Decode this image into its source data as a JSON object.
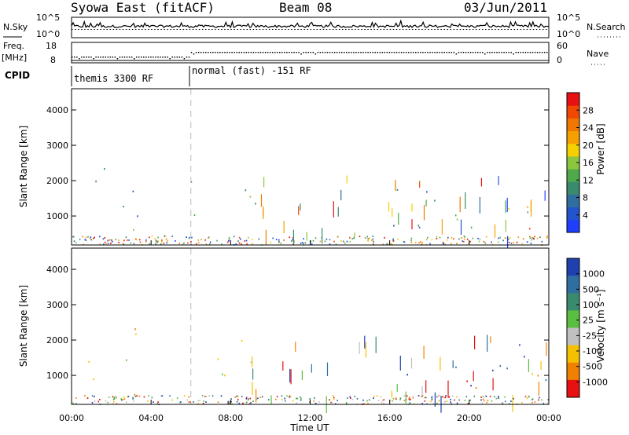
{
  "header": {
    "station": "Syowa East (fitACF)",
    "beam": "Beam 08",
    "date": "03/Jun/2011"
  },
  "top_panel": {
    "left_label": "N.Sky",
    "left_ticks": [
      "10^5",
      "10^0"
    ],
    "right_ticks": [
      "10^5",
      "10^0"
    ],
    "right_label": "N.Search"
  },
  "freq_panel": {
    "left_label_1": "Freq.",
    "left_label_2": "[MHz]",
    "left_ticks": [
      "18",
      "8"
    ],
    "right_ticks": [
      "60",
      "0"
    ],
    "right_label": "Nave"
  },
  "cpid": {
    "label": "CPID",
    "segments": [
      {
        "text": "themis 3300 RF",
        "start_hour": 0
      },
      {
        "text": "normal (fast) -151 RF",
        "start_hour": 6
      }
    ]
  },
  "chart_data": [
    {
      "type": "heatmap",
      "panel": "power",
      "ylabel": "Slant Range [km]",
      "yticks": [
        1000,
        2000,
        3000,
        4000
      ],
      "ylim": [
        180,
        4600
      ],
      "xlim_hours": [
        0,
        24
      ],
      "colorbar": {
        "label": "Power [dB]",
        "ticks": [
          4,
          8,
          12,
          16,
          20,
          24,
          28
        ],
        "colors": [
          "#1f3fff",
          "#2255cc",
          "#2e6fa0",
          "#3a8a6e",
          "#4fa84a",
          "#8cc63f",
          "#f5d000",
          "#f5a000",
          "#f07800",
          "#f04800",
          "#e81010"
        ]
      },
      "regions": [
        {
          "x0": 0.8,
          "x1": 3.5,
          "r0": 300,
          "r1": 2500,
          "level": 0.2
        },
        {
          "x0": 2.4,
          "x1": 3.4,
          "r0": 600,
          "r1": 2300,
          "level": 0.45
        },
        {
          "x0": 5.5,
          "x1": 9.5,
          "r0": 1000,
          "r1": 2300,
          "level": 0.35
        },
        {
          "x0": 6.2,
          "x1": 9.2,
          "r0": 1200,
          "r1": 1800,
          "level": 0.5
        },
        {
          "x0": 16.0,
          "x1": 24.0,
          "r0": 600,
          "r1": 1900,
          "level": 0.3
        },
        {
          "x0": 19.0,
          "x1": 24.0,
          "r0": 500,
          "r1": 1300,
          "level": 0.55
        },
        {
          "x0": 22.0,
          "x1": 24.0,
          "r0": 500,
          "r1": 1100,
          "level": 0.8
        }
      ]
    },
    {
      "type": "heatmap",
      "panel": "velocity",
      "ylabel": "Slant Range [km]",
      "yticks": [
        1000,
        2000,
        3000,
        4000
      ],
      "ylim": [
        180,
        4600
      ],
      "xlim_hours": [
        0,
        24
      ],
      "colorbar": {
        "label": "Velocity [m s⁻¹]",
        "ticks": [
          "1000",
          "500",
          "100",
          "25",
          "-25",
          "-100",
          "-500",
          "-1000"
        ],
        "colors": [
          "#2040b0",
          "#2e6fa0",
          "#3a8a6e",
          "#5abf40",
          "#c0c0c0",
          "#f5c000",
          "#f08000",
          "#e81010"
        ]
      },
      "regions": [
        {
          "x0": 0.8,
          "x1": 3.5,
          "r0": 300,
          "r1": 2500,
          "level": 0.75
        },
        {
          "x0": 2.4,
          "x1": 3.4,
          "r0": 600,
          "r1": 2300,
          "level": 0.3
        },
        {
          "x0": 5.5,
          "x1": 9.5,
          "r0": 1000,
          "r1": 2300,
          "level": 0.55
        },
        {
          "x0": 6.2,
          "x1": 9.2,
          "r0": 1200,
          "r1": 1800,
          "level": 0.8
        },
        {
          "x0": 16.0,
          "x1": 24.0,
          "r0": 600,
          "r1": 1900,
          "level": 0.2
        },
        {
          "x0": 19.0,
          "x1": 24.0,
          "r0": 500,
          "r1": 1300,
          "level": 0.85
        },
        {
          "x0": 22.0,
          "x1": 24.0,
          "r0": 500,
          "r1": 1100,
          "level": 0.9
        }
      ]
    }
  ],
  "x_axis": {
    "ticks": [
      "00:00",
      "04:00",
      "08:00",
      "12:00",
      "16:00",
      "20:00",
      "00:00"
    ],
    "label": "Time UT"
  }
}
